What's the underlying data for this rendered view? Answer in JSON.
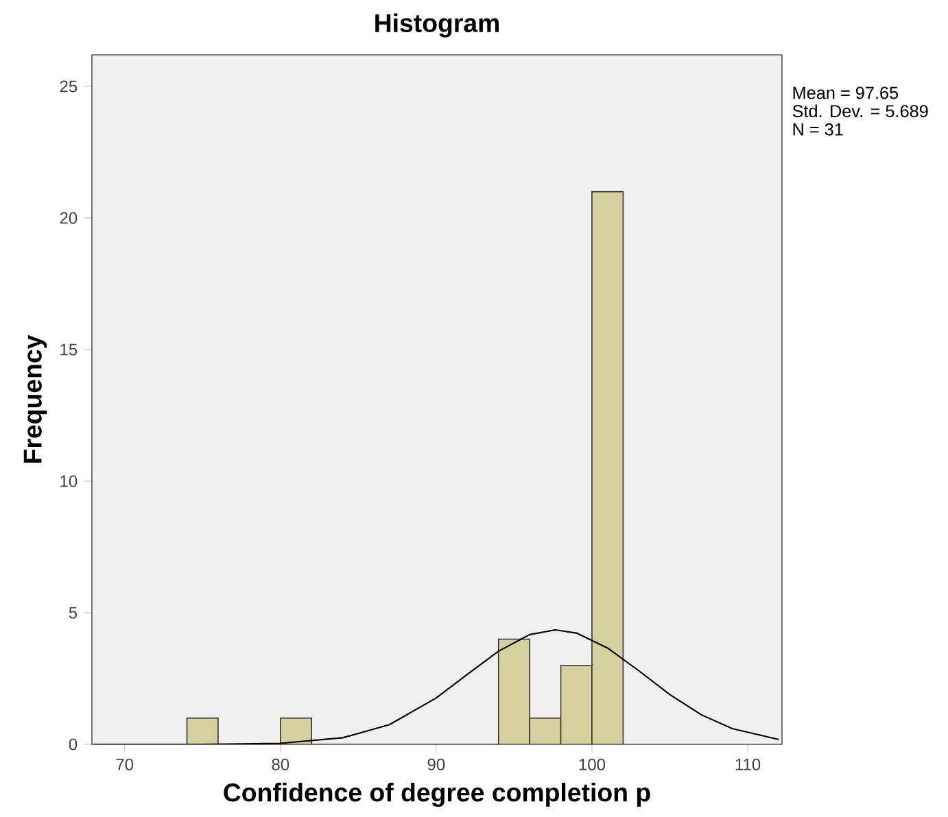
{
  "chart_data": {
    "type": "histogram",
    "title": "Histogram",
    "xlabel": "Confidence of degree completion p",
    "ylabel": "Frequency",
    "bins": [
      74,
      76,
      78,
      80,
      82,
      84,
      86,
      88,
      90,
      92,
      94,
      96,
      98,
      100,
      102
    ],
    "values": [
      1,
      0,
      0,
      1,
      0,
      0,
      0,
      0,
      0,
      0,
      4,
      1,
      3,
      21
    ],
    "color": "#d6d09e",
    "series": [
      {
        "type": "line",
        "color": "#000000",
        "x": [
          68,
          75,
          80,
          84,
          87,
          90,
          92,
          94,
          96,
          97.65,
          99,
          101,
          103,
          105,
          107,
          109,
          112
        ],
        "values": [
          0,
          0,
          0.04,
          0.25,
          0.75,
          1.76,
          2.66,
          3.54,
          4.17,
          4.35,
          4.23,
          3.66,
          2.8,
          1.89,
          1.13,
          0.6,
          0.18
        ]
      }
    ],
    "xlim": [
      67.9,
      112.2
    ],
    "ylim": [
      0,
      26.2
    ],
    "xticks": [
      70,
      80,
      90,
      100,
      110
    ],
    "yticks": [
      0,
      5,
      10,
      15,
      20,
      25
    ],
    "annotations": [
      "Mean = 97.65",
      "Std. Dev. = 5.689",
      "N = 31"
    ]
  }
}
